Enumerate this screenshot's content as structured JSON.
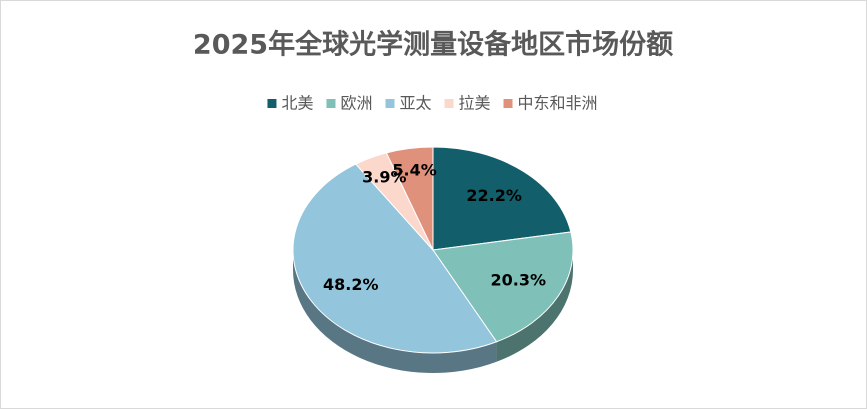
{
  "chart_data": {
    "type": "pie3d",
    "title": "2025年全球光学测量设备地区市场份额",
    "categories": [
      "北美",
      "欧洲",
      "亚太",
      "拉美",
      "中东和非洲"
    ],
    "values": [
      22.2,
      20.3,
      48.2,
      3.9,
      5.4
    ],
    "value_labels": [
      "22.2%",
      "20.3%",
      "48.2%",
      "3.9%",
      "5.4%"
    ],
    "colors": [
      "#125f6b",
      "#7fc0b8",
      "#93c5dc",
      "#fbd8cb",
      "#e0917b"
    ],
    "legend": "top"
  }
}
